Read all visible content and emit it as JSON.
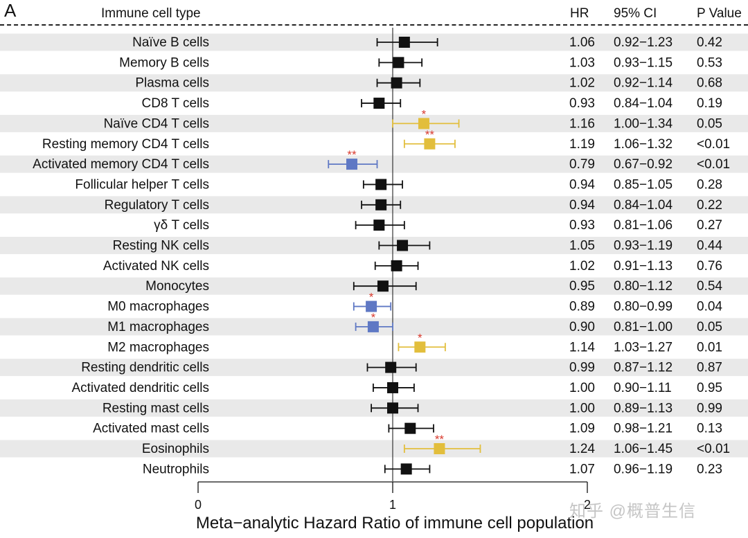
{
  "panel_letter": "A",
  "headers": {
    "cell_type": "Immune cell type",
    "hr": "HR",
    "ci": "95% CI",
    "p": "P Value"
  },
  "watermark": "知乎 @概普生信",
  "colors": {
    "neutral": "#111111",
    "increased": "#E2BE3C",
    "decreased": "#5F78C4",
    "significance": "#D93A2E",
    "row_shade": "#E9E9E9"
  },
  "chart_data": {
    "type": "forest",
    "xlabel": "Meta−analytic Hazard Ratio of immune cell population",
    "xticks": [
      "0",
      "1",
      "2"
    ],
    "reference_line": 1,
    "rows": [
      {
        "label": "Naïve B cells",
        "hr": 1.06,
        "lo": 0.92,
        "hi": 1.23,
        "hr_text": "1.06",
        "ci_text": "0.92−1.23",
        "p_text": "0.42",
        "sig": "",
        "dir": "none"
      },
      {
        "label": "Memory B cells",
        "hr": 1.03,
        "lo": 0.93,
        "hi": 1.15,
        "hr_text": "1.03",
        "ci_text": "0.93−1.15",
        "p_text": "0.53",
        "sig": "",
        "dir": "none"
      },
      {
        "label": "Plasma cells",
        "hr": 1.02,
        "lo": 0.92,
        "hi": 1.14,
        "hr_text": "1.02",
        "ci_text": "0.92−1.14",
        "p_text": "0.68",
        "sig": "",
        "dir": "none"
      },
      {
        "label": "CD8 T cells",
        "hr": 0.93,
        "lo": 0.84,
        "hi": 1.04,
        "hr_text": "0.93",
        "ci_text": "0.84−1.04",
        "p_text": "0.19",
        "sig": "",
        "dir": "none"
      },
      {
        "label": "Naïve CD4 T cells",
        "hr": 1.16,
        "lo": 1.0,
        "hi": 1.34,
        "hr_text": "1.16",
        "ci_text": "1.00−1.34",
        "p_text": "0.05",
        "sig": "*",
        "dir": "up"
      },
      {
        "label": "Resting memory CD4 T cells",
        "hr": 1.19,
        "lo": 1.06,
        "hi": 1.32,
        "hr_text": "1.19",
        "ci_text": "1.06−1.32",
        "p_text": "<0.01",
        "sig": "**",
        "dir": "up"
      },
      {
        "label": "Activated memory CD4 T cells",
        "hr": 0.79,
        "lo": 0.67,
        "hi": 0.92,
        "hr_text": "0.79",
        "ci_text": "0.67−0.92",
        "p_text": "<0.01",
        "sig": "**",
        "dir": "down"
      },
      {
        "label": "Follicular helper T cells",
        "hr": 0.94,
        "lo": 0.85,
        "hi": 1.05,
        "hr_text": "0.94",
        "ci_text": "0.85−1.05",
        "p_text": "0.28",
        "sig": "",
        "dir": "none"
      },
      {
        "label": "Regulatory T cells",
        "hr": 0.94,
        "lo": 0.84,
        "hi": 1.04,
        "hr_text": "0.94",
        "ci_text": "0.84−1.04",
        "p_text": "0.22",
        "sig": "",
        "dir": "none"
      },
      {
        "label": "γδ T cells",
        "hr": 0.93,
        "lo": 0.81,
        "hi": 1.06,
        "hr_text": "0.93",
        "ci_text": "0.81−1.06",
        "p_text": "0.27",
        "sig": "",
        "dir": "none"
      },
      {
        "label": "Resting NK cells",
        "hr": 1.05,
        "lo": 0.93,
        "hi": 1.19,
        "hr_text": "1.05",
        "ci_text": "0.93−1.19",
        "p_text": "0.44",
        "sig": "",
        "dir": "none"
      },
      {
        "label": "Activated NK cells",
        "hr": 1.02,
        "lo": 0.91,
        "hi": 1.13,
        "hr_text": "1.02",
        "ci_text": "0.91−1.13",
        "p_text": "0.76",
        "sig": "",
        "dir": "none"
      },
      {
        "label": "Monocytes",
        "hr": 0.95,
        "lo": 0.8,
        "hi": 1.12,
        "hr_text": "0.95",
        "ci_text": "0.80−1.12",
        "p_text": "0.54",
        "sig": "",
        "dir": "none"
      },
      {
        "label": "M0 macrophages",
        "hr": 0.89,
        "lo": 0.8,
        "hi": 0.99,
        "hr_text": "0.89",
        "ci_text": "0.80−0.99",
        "p_text": "0.04",
        "sig": "*",
        "dir": "down"
      },
      {
        "label": "M1 macrophages",
        "hr": 0.9,
        "lo": 0.81,
        "hi": 1.0,
        "hr_text": "0.90",
        "ci_text": "0.81−1.00",
        "p_text": "0.05",
        "sig": "*",
        "dir": "down"
      },
      {
        "label": "M2 macrophages",
        "hr": 1.14,
        "lo": 1.03,
        "hi": 1.27,
        "hr_text": "1.14",
        "ci_text": "1.03−1.27",
        "p_text": "0.01",
        "sig": "*",
        "dir": "up"
      },
      {
        "label": "Resting dendritic cells",
        "hr": 0.99,
        "lo": 0.87,
        "hi": 1.12,
        "hr_text": "0.99",
        "ci_text": "0.87−1.12",
        "p_text": "0.87",
        "sig": "",
        "dir": "none"
      },
      {
        "label": "Activated dendritic cells",
        "hr": 1.0,
        "lo": 0.9,
        "hi": 1.11,
        "hr_text": "1.00",
        "ci_text": "0.90−1.11",
        "p_text": "0.95",
        "sig": "",
        "dir": "none"
      },
      {
        "label": "Resting mast cells",
        "hr": 1.0,
        "lo": 0.89,
        "hi": 1.13,
        "hr_text": "1.00",
        "ci_text": "0.89−1.13",
        "p_text": "0.99",
        "sig": "",
        "dir": "none"
      },
      {
        "label": "Activated mast cells",
        "hr": 1.09,
        "lo": 0.98,
        "hi": 1.21,
        "hr_text": "1.09",
        "ci_text": "0.98−1.21",
        "p_text": "0.13",
        "sig": "",
        "dir": "none"
      },
      {
        "label": "Eosinophils",
        "hr": 1.24,
        "lo": 1.06,
        "hi": 1.45,
        "hr_text": "1.24",
        "ci_text": "1.06−1.45",
        "p_text": "<0.01",
        "sig": "**",
        "dir": "up"
      },
      {
        "label": "Neutrophils",
        "hr": 1.07,
        "lo": 0.96,
        "hi": 1.19,
        "hr_text": "1.07",
        "ci_text": "0.96−1.19",
        "p_text": "0.23",
        "sig": "",
        "dir": "none"
      }
    ]
  }
}
